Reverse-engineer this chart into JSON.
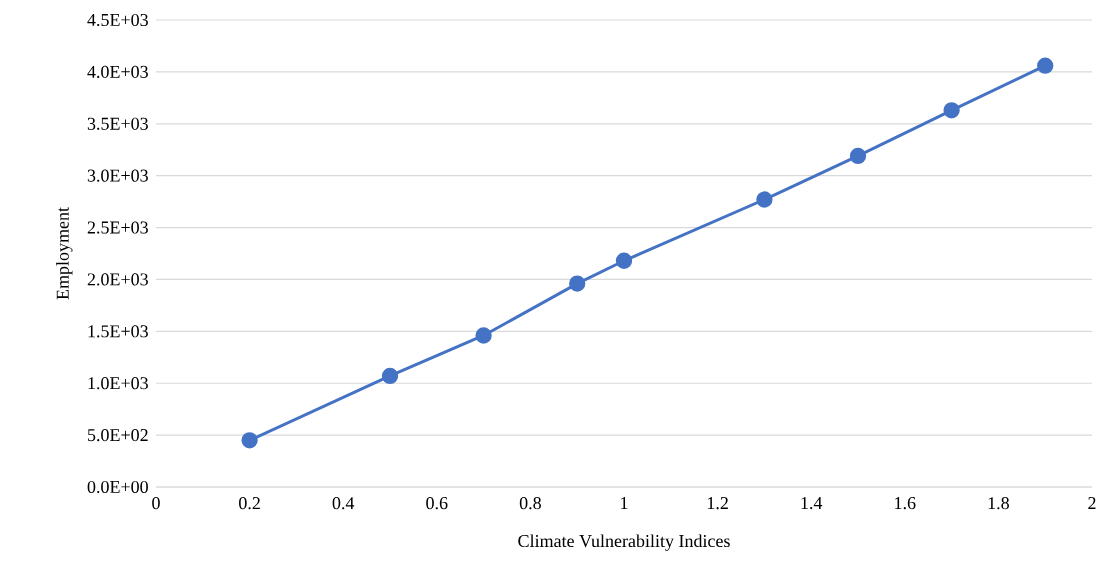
{
  "chart_data": {
    "type": "line",
    "xlabel": "Climate Vulnerability Indices",
    "ylabel": "Employment",
    "x": [
      0.2,
      0.5,
      0.7,
      0.9,
      1.0,
      1.3,
      1.5,
      1.7,
      1.9
    ],
    "series": [
      {
        "color": "#4472c4",
        "values": [
          450,
          1070,
          1460,
          1960,
          2180,
          2770,
          3190,
          3630,
          4060
        ]
      }
    ],
    "xlim": [
      0,
      2
    ],
    "xticks": [
      0,
      0.2,
      0.4,
      0.6,
      0.8,
      1,
      1.2,
      1.4,
      1.6,
      1.8,
      2
    ],
    "ylim": [
      0,
      4500
    ],
    "yticks": [
      {
        "value": 0,
        "label": "0.0E+00"
      },
      {
        "value": 500,
        "label": "5.0E+02"
      },
      {
        "value": 1000,
        "label": "1.0E+03"
      },
      {
        "value": 1500,
        "label": "1.5E+03"
      },
      {
        "value": 2000,
        "label": "2.0E+03"
      },
      {
        "value": 2500,
        "label": "2.5E+03"
      },
      {
        "value": 3000,
        "label": "3.0E+03"
      },
      {
        "value": 3500,
        "label": "3.5E+03"
      },
      {
        "value": 4000,
        "label": "4.0E+03"
      },
      {
        "value": 4500,
        "label": "4.5E+03"
      }
    ],
    "grid": "y",
    "marker": "circle",
    "line_style": "solid"
  }
}
